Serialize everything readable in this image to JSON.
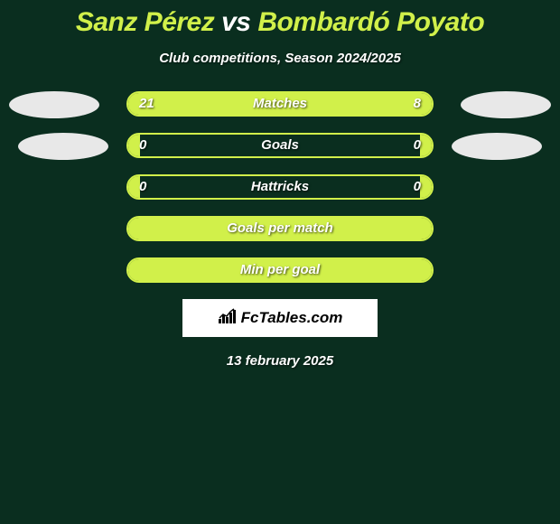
{
  "background_color": "#0a2e1f",
  "accent_color": "#d1f04a",
  "text_color": "#ffffff",
  "title": {
    "player1": "Sanz Pérez",
    "vs": "vs",
    "player2": "Bombardó Poyato",
    "fontsize": 30
  },
  "subtitle": "Club competitions, Season 2024/2025",
  "rows": [
    {
      "label": "Matches",
      "left_val": "21",
      "right_val": "8",
      "left_pct": 70,
      "right_pct": 30
    },
    {
      "label": "Goals",
      "left_val": "0",
      "right_val": "0",
      "left_pct": 4,
      "right_pct": 4
    },
    {
      "label": "Hattricks",
      "left_val": "0",
      "right_val": "0",
      "left_pct": 4,
      "right_pct": 4
    },
    {
      "label": "Goals per match",
      "left_val": "",
      "right_val": "",
      "left_pct": 100,
      "right_pct": 0
    },
    {
      "label": "Min per goal",
      "left_val": "",
      "right_val": "",
      "left_pct": 100,
      "right_pct": 0
    }
  ],
  "bar": {
    "track_width": 340,
    "track_height": 28,
    "border_radius": 14,
    "border_color": "#d1f04a",
    "fill_color": "#d1f04a",
    "label_fontsize": 15
  },
  "avatars": {
    "fill": "#e8e8e8"
  },
  "footer": {
    "logo_text": "FcTables.com",
    "logo_bg": "#ffffff",
    "logo_text_color": "#000000",
    "date": "13 february 2025"
  }
}
